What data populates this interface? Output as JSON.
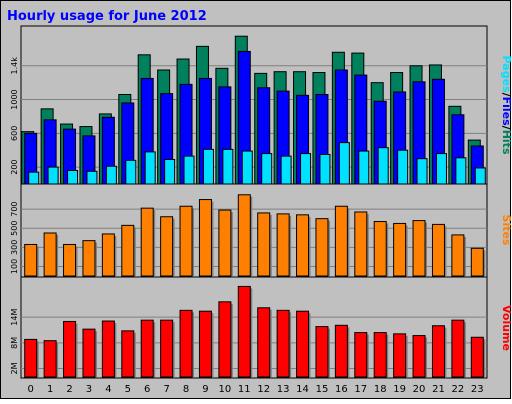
{
  "title": "Hourly usage for June 2012",
  "colors": {
    "frame_bg": "#C0C0C0",
    "plot_bg": "#C0C0C0",
    "title": "#0000FF",
    "hits": "#00805C",
    "files": "#0000FF",
    "pages": "#00E0FF",
    "sites": "#FF8000",
    "volume": "#FF0000"
  },
  "chart_data": [
    {
      "type": "bar",
      "panel": "hits-files-pages",
      "ylabel_parts": [
        "Pages",
        "/",
        "Files",
        "/",
        "Hits"
      ],
      "y_ticks": [
        "200",
        "600",
        "1000",
        "1.4k"
      ],
      "ylim": [
        0,
        1800
      ],
      "categories": [
        "0",
        "1",
        "2",
        "3",
        "4",
        "5",
        "6",
        "7",
        "8",
        "9",
        "10",
        "11",
        "12",
        "13",
        "14",
        "15",
        "16",
        "17",
        "18",
        "19",
        "20",
        "21",
        "22",
        "23"
      ],
      "series": [
        {
          "name": "Hits",
          "values": [
            620,
            890,
            710,
            680,
            830,
            1060,
            1530,
            1350,
            1480,
            1630,
            1370,
            1750,
            1310,
            1330,
            1330,
            1320,
            1560,
            1550,
            1200,
            1320,
            1400,
            1410,
            920,
            520
          ]
        },
        {
          "name": "Files",
          "values": [
            600,
            760,
            650,
            570,
            790,
            960,
            1250,
            1070,
            1180,
            1250,
            1150,
            1570,
            1140,
            1100,
            1050,
            1060,
            1350,
            1290,
            980,
            1090,
            1210,
            1240,
            820,
            450
          ]
        },
        {
          "name": "Pages",
          "values": [
            140,
            200,
            160,
            150,
            210,
            280,
            380,
            290,
            330,
            410,
            410,
            390,
            360,
            330,
            360,
            350,
            490,
            390,
            430,
            400,
            300,
            360,
            310,
            190
          ]
        }
      ]
    },
    {
      "type": "bar",
      "panel": "sites",
      "ylabel": "Sites",
      "y_ticks": [
        "100",
        "300",
        "500",
        "700"
      ],
      "ylim": [
        0,
        900
      ],
      "categories": [
        "0",
        "1",
        "2",
        "3",
        "4",
        "5",
        "6",
        "7",
        "8",
        "9",
        "10",
        "11",
        "12",
        "13",
        "14",
        "15",
        "16",
        "17",
        "18",
        "19",
        "20",
        "21",
        "22",
        "23"
      ],
      "series": [
        {
          "name": "Sites",
          "values": [
            330,
            450,
            330,
            370,
            440,
            530,
            710,
            620,
            730,
            800,
            690,
            850,
            660,
            650,
            640,
            600,
            730,
            670,
            570,
            550,
            580,
            540,
            430,
            290
          ]
        }
      ]
    },
    {
      "type": "bar",
      "panel": "volume",
      "ylabel": "Volume",
      "y_ticks": [
        "2M",
        "8M",
        "14M"
      ],
      "ylim": [
        0,
        22
      ],
      "categories": [
        "0",
        "1",
        "2",
        "3",
        "4",
        "5",
        "6",
        "7",
        "8",
        "9",
        "10",
        "11",
        "12",
        "13",
        "14",
        "15",
        "16",
        "17",
        "18",
        "19",
        "20",
        "21",
        "22",
        "23"
      ],
      "series": [
        {
          "name": "Volume",
          "values": [
            8.8,
            8.5,
            13,
            11.2,
            13.1,
            10.8,
            13.3,
            13.3,
            15.6,
            15.4,
            17.6,
            21.2,
            16.2,
            15.6,
            15.4,
            11.8,
            12.1,
            10.4,
            10.4,
            10.1,
            9.7,
            12,
            13.3,
            9.3
          ]
        }
      ]
    }
  ]
}
